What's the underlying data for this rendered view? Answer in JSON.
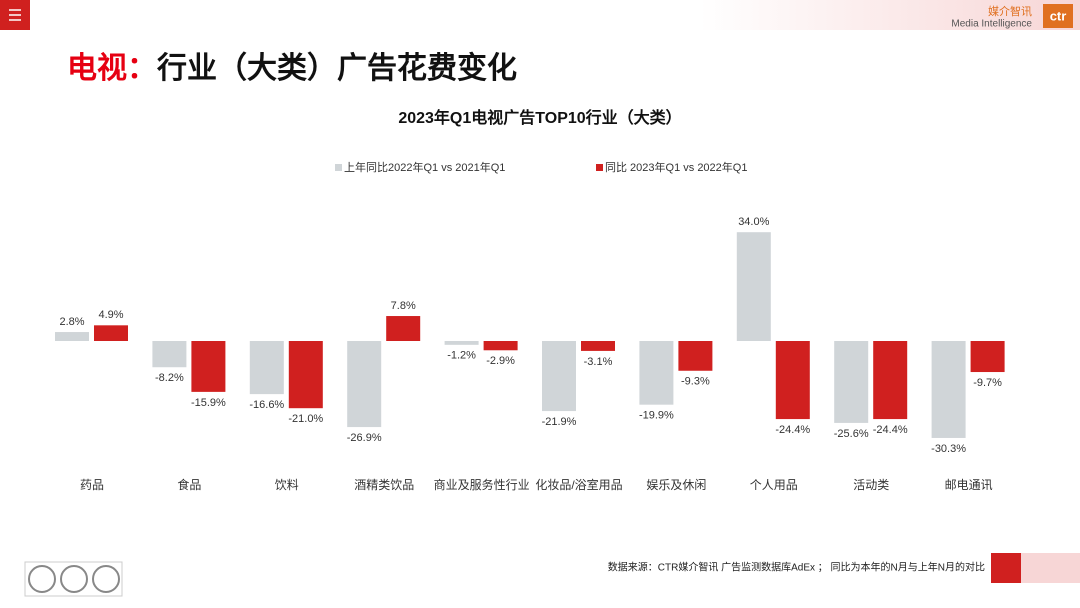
{
  "header": {
    "title_prefix": "电视：",
    "title": "行业（大类）广告花费变化",
    "logo_cn": "媒介智讯",
    "logo_en": "Media Intelligence",
    "logo_mark": "ctr"
  },
  "chart_data": {
    "type": "bar",
    "title": "2023年Q1电视广告TOP10行业（大类）",
    "categories": [
      "药品",
      "食品",
      "饮料",
      "酒精类饮品",
      "商业及服务性行业",
      "化妆品/浴室用品",
      "娱乐及休闲",
      "个人用品",
      "活动类",
      "邮电通讯"
    ],
    "series": [
      {
        "name": "上年同比2022年Q1  vs 2021年Q1",
        "color": "#d0d5d8",
        "values": [
          2.8,
          -8.2,
          -16.6,
          -26.9,
          -1.2,
          -21.9,
          -19.9,
          34.0,
          -25.6,
          -30.3
        ],
        "value_labels": [
          "2.8%",
          "-8.2%",
          "-16.6%",
          "-26.9%",
          "-1.2%",
          "-21.9%",
          "-19.9%",
          "34.0%",
          "-25.6%",
          "-30.3%"
        ]
      },
      {
        "name": "同比 2023年Q1  vs 2022年Q1",
        "color": "#d0201f",
        "values": [
          4.9,
          -15.9,
          -21.0,
          7.8,
          -2.9,
          -3.1,
          -9.3,
          -24.4,
          -24.4,
          -9.7
        ],
        "value_labels": [
          "4.9%",
          "-15.9%",
          "-21.0%",
          "7.8%",
          "-2.9%",
          "-3.1%",
          "-9.3%",
          "-24.4%",
          "-24.4%",
          "-9.7%"
        ]
      }
    ],
    "ylim": [
      -40,
      40
    ],
    "legend": "top"
  },
  "footer": {
    "source": "数据来源：CTR媒介智讯 广告监测数据库AdEx ； 同比为本年的N月与上年N月的对比"
  }
}
